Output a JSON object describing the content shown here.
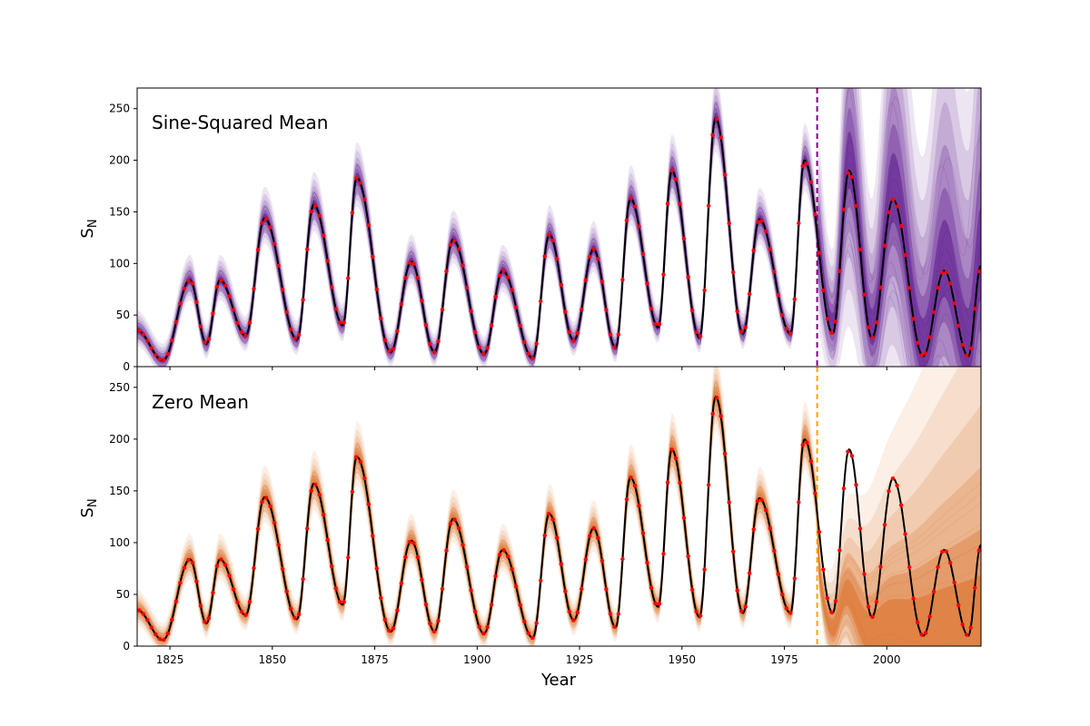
{
  "figure": {
    "xlabel": "Year",
    "ylabel": "S",
    "ylabel_sub": "N"
  },
  "chart_data": [
    {
      "type": "line",
      "title": "Sine-Squared Mean",
      "xlim": [
        1817,
        2023
      ],
      "ylim": [
        0,
        270
      ],
      "xticks": [
        1825,
        1850,
        1875,
        1900,
        1925,
        1950,
        1975,
        2000
      ],
      "yticks": [
        0,
        50,
        100,
        150,
        200,
        250
      ],
      "split_year": 1983,
      "split_color": "#800080",
      "band_color": "#4b0082",
      "grid": false,
      "forecast_style": "bounded",
      "tick_labels_x_visible": false
    },
    {
      "type": "line",
      "title": "Zero Mean",
      "xlim": [
        1817,
        2023
      ],
      "ylim": [
        0,
        270
      ],
      "xticks": [
        1825,
        1850,
        1875,
        1900,
        1925,
        1950,
        1975,
        2000
      ],
      "yticks": [
        0,
        50,
        100,
        150,
        200,
        250
      ],
      "split_year": 1983,
      "split_color": "#ffa500",
      "band_color": "#d95f0e",
      "grid": false,
      "forecast_style": "decay",
      "tick_labels_x_visible": true
    }
  ],
  "series_data": {
    "line_color": "#000000",
    "point_color": "#ff0000",
    "minima_years": [
      1817,
      1823.3,
      1833.9,
      1843.5,
      1856.0,
      1867.2,
      1878.9,
      1889.6,
      1901.7,
      1913.6,
      1923.6,
      1933.8,
      1944.2,
      1954.3,
      1964.9,
      1976.5,
      1986.8,
      1996.4,
      2008.9,
      2019.9,
      2023
    ],
    "minima_values": [
      35,
      6,
      22,
      30,
      26,
      40,
      14,
      14,
      12,
      8,
      25,
      18,
      38,
      28,
      32,
      32,
      32,
      28,
      10,
      10,
      98
    ],
    "maxima_years": [
      1829.9,
      1837.2,
      1848.1,
      1860.1,
      1870.6,
      1883.9,
      1894.1,
      1906.2,
      1917.6,
      1928.4,
      1937.4,
      1947.5,
      1958.2,
      1968.9,
      1979.9,
      1990.8,
      2001.5,
      2014.0
    ],
    "maxima_values": [
      84,
      84,
      144,
      157,
      183,
      102,
      123,
      93,
      128,
      114,
      163,
      190,
      241,
      143,
      200,
      190,
      162,
      93
    ]
  }
}
